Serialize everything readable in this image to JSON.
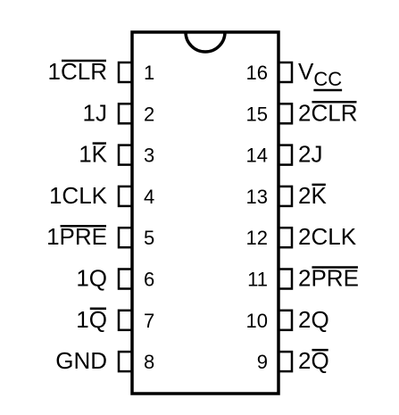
{
  "chip": {
    "left_pins": [
      {
        "number": "1",
        "prefix": "1",
        "bar": "CLR",
        "suffix": ""
      },
      {
        "number": "2",
        "prefix": "1J",
        "bar": "",
        "suffix": ""
      },
      {
        "number": "3",
        "prefix": "1",
        "bar": "K",
        "suffix": ""
      },
      {
        "number": "4",
        "prefix": "1CLK",
        "bar": "",
        "suffix": ""
      },
      {
        "number": "5",
        "prefix": "1",
        "bar": "PRE",
        "suffix": ""
      },
      {
        "number": "6",
        "prefix": "1Q",
        "bar": "",
        "suffix": ""
      },
      {
        "number": "7",
        "prefix": "1",
        "bar": "Q",
        "suffix": ""
      },
      {
        "number": "8",
        "prefix": "GND",
        "bar": "",
        "suffix": ""
      }
    ],
    "right_pins": [
      {
        "number": "16",
        "prefix": "V",
        "bar": "",
        "sub": "CC"
      },
      {
        "number": "15",
        "prefix": "2",
        "bar": "CLR",
        "sub": ""
      },
      {
        "number": "14",
        "prefix": "2J",
        "bar": "",
        "sub": ""
      },
      {
        "number": "13",
        "prefix": "2",
        "bar": "K",
        "sub": ""
      },
      {
        "number": "12",
        "prefix": "2CLK",
        "bar": "",
        "sub": ""
      },
      {
        "number": "11",
        "prefix": "2",
        "bar": "PRE",
        "sub": ""
      },
      {
        "number": "10",
        "prefix": "2Q",
        "bar": "",
        "sub": ""
      },
      {
        "number": "9",
        "prefix": "2",
        "bar": "Q",
        "sub": ""
      }
    ]
  }
}
